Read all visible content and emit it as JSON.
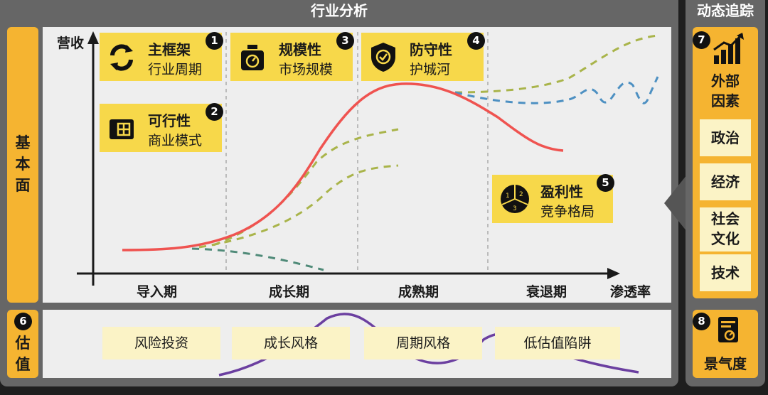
{
  "header": {
    "title": "行业分析",
    "side_title": "动态追踪"
  },
  "left_labels": {
    "fundamentals": "基本面",
    "valuation": "估值"
  },
  "chart": {
    "y_label": "营收",
    "x_label": "渗透率"
  },
  "phases": [
    "导入期",
    "成长期",
    "成熟期",
    "衰退期"
  ],
  "cards": [
    {
      "num": "1",
      "title": "主框架",
      "subtitle": "行业周期",
      "icon": "recycle-arrows-icon"
    },
    {
      "num": "2",
      "title": "可行性",
      "subtitle": "商业模式",
      "icon": "blueprint-icon"
    },
    {
      "num": "3",
      "title": "规模性",
      "subtitle": "市场规模",
      "icon": "scale-icon"
    },
    {
      "num": "4",
      "title": "防守性",
      "subtitle": "护城河",
      "icon": "shield-check-icon"
    },
    {
      "num": "5",
      "title": "盈利性",
      "subtitle": "竞争格局",
      "icon": "pie-chart-icon"
    }
  ],
  "valuation": {
    "num": "6",
    "styles": [
      "风险投资",
      "成长风格",
      "周期风格",
      "低估值陷阱"
    ]
  },
  "dynamic": {
    "external": {
      "num": "7",
      "title": "外部因素",
      "icon": "rising-bars-icon",
      "factors": [
        "政治",
        "经济",
        "社会文化",
        "技术"
      ]
    },
    "sentiment": {
      "num": "8",
      "title": "景气度",
      "icon": "report-icon"
    }
  },
  "colors": {
    "panel": "#666666",
    "accent": "#f5b431",
    "card": "#f7d84a",
    "cream": "#fbf3c6",
    "main_curve": "#ef5350",
    "branch_green": "#a9b44a",
    "branch_teal": "#4f8a78",
    "branch_blue": "#4d90c2",
    "valuation_curve": "#6b3fa0"
  }
}
